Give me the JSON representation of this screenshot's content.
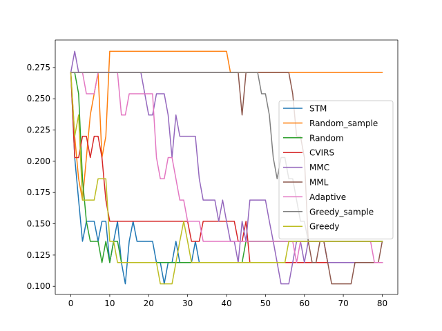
{
  "chart_data": {
    "type": "line",
    "title": "",
    "xlabel": "",
    "ylabel": "",
    "xlim": [
      -4,
      84
    ],
    "ylim": [
      0.0935,
      0.297
    ],
    "xticks": [
      0,
      10,
      20,
      30,
      40,
      50,
      60,
      70,
      80
    ],
    "xtick_labels": [
      "0",
      "10",
      "20",
      "30",
      "40",
      "50",
      "60",
      "70",
      "80"
    ],
    "yticks": [
      0.1,
      0.125,
      0.15,
      0.175,
      0.2,
      0.225,
      0.25,
      0.275
    ],
    "ytick_labels": [
      "0.100",
      "0.125",
      "0.150",
      "0.175",
      "0.200",
      "0.225",
      "0.250",
      "0.275"
    ],
    "grid": false,
    "legend_position": "center-right",
    "x": [
      0,
      1,
      2,
      3,
      4,
      5,
      6,
      7,
      8,
      9,
      10,
      11,
      12,
      13,
      14,
      15,
      16,
      17,
      18,
      19,
      20,
      21,
      22,
      23,
      24,
      25,
      26,
      27,
      28,
      29,
      30,
      31,
      32,
      33,
      34,
      35,
      36,
      37,
      38,
      39,
      40,
      41,
      42,
      43,
      44,
      45,
      46,
      47,
      48,
      49,
      50,
      51,
      52,
      53,
      54,
      55,
      56,
      57,
      58,
      59,
      60,
      61,
      62,
      63,
      64,
      65,
      66,
      67,
      68,
      69,
      70,
      71,
      72,
      73,
      74,
      75,
      76,
      77,
      78,
      79,
      80
    ],
    "series": [
      {
        "name": "STM",
        "color": "#1f77b4",
        "values": [
          0.271,
          0.203,
          0.169,
          0.136,
          0.152,
          0.152,
          0.152,
          0.136,
          0.152,
          0.152,
          0.119,
          0.136,
          0.152,
          0.119,
          0.102,
          0.136,
          0.152,
          0.136,
          0.136,
          0.136,
          0.136,
          0.136,
          0.119,
          0.119,
          0.102,
          0.119,
          0.119,
          0.136,
          0.119,
          0.119,
          0.119,
          0.119,
          0.136,
          0.119,
          0.119,
          0.119,
          0.119,
          0.119,
          0.119,
          0.119,
          0.119,
          0.119,
          0.119,
          0.119,
          0.119,
          0.119,
          0.119,
          0.119,
          0.119,
          0.119,
          0.119,
          0.119,
          0.119,
          0.119,
          0.119,
          0.119,
          0.119,
          0.119,
          0.119,
          0.119,
          0.119,
          0.119,
          0.119,
          0.119,
          0.119,
          0.119,
          0.119,
          0.119,
          0.119,
          0.119,
          0.119,
          0.119,
          0.119,
          0.119,
          0.119,
          0.119,
          0.119,
          0.119,
          0.119,
          0.119,
          0.119
        ]
      },
      {
        "name": "Random_sample",
        "color": "#ff7f0e",
        "values": [
          0.271,
          0.22,
          0.186,
          0.169,
          0.203,
          0.237,
          0.254,
          0.271,
          0.203,
          0.22,
          0.288,
          0.288,
          0.288,
          0.288,
          0.288,
          0.288,
          0.288,
          0.288,
          0.288,
          0.288,
          0.288,
          0.288,
          0.288,
          0.288,
          0.288,
          0.288,
          0.288,
          0.288,
          0.288,
          0.288,
          0.288,
          0.288,
          0.288,
          0.288,
          0.288,
          0.288,
          0.288,
          0.288,
          0.288,
          0.288,
          0.288,
          0.271,
          0.271,
          0.271,
          0.271,
          0.271,
          0.271,
          0.271,
          0.271,
          0.271,
          0.271,
          0.271,
          0.271,
          0.271,
          0.271,
          0.271,
          0.271,
          0.271,
          0.271,
          0.271,
          0.271,
          0.271,
          0.271,
          0.271,
          0.271,
          0.271,
          0.271,
          0.271,
          0.271,
          0.271,
          0.271,
          0.271,
          0.271,
          0.271,
          0.271,
          0.271,
          0.271,
          0.271,
          0.271,
          0.271,
          0.271
        ]
      },
      {
        "name": "Random",
        "color": "#2ca02c",
        "values": [
          0.271,
          0.271,
          0.254,
          0.186,
          0.152,
          0.136,
          0.136,
          0.136,
          0.119,
          0.136,
          0.119,
          0.136,
          0.136,
          0.119,
          0.119,
          0.119,
          0.119,
          0.119,
          0.119,
          0.119,
          0.119,
          0.119,
          0.119,
          0.119,
          0.119,
          0.119,
          0.119,
          0.119,
          0.119,
          0.119,
          0.119,
          0.119,
          0.119,
          0.119,
          0.119,
          0.119,
          0.119,
          0.119,
          0.119,
          0.119,
          0.119,
          0.119,
          0.119,
          0.119,
          0.119,
          0.136,
          0.136,
          0.136,
          0.136,
          0.136,
          0.136,
          0.136,
          0.136,
          0.136,
          0.136,
          0.136,
          0.136,
          0.136,
          0.136,
          0.136,
          0.136,
          0.136,
          0.136,
          0.136,
          0.136,
          0.136,
          0.136,
          0.136,
          0.136,
          0.136,
          0.136,
          0.136,
          0.136,
          0.136,
          0.136,
          0.136,
          0.136,
          0.136,
          0.136,
          0.136,
          0.136
        ]
      },
      {
        "name": "CVIRS",
        "color": "#d62728",
        "values": [
          0.271,
          0.203,
          0.203,
          0.22,
          0.22,
          0.203,
          0.22,
          0.22,
          0.203,
          0.169,
          0.152,
          0.152,
          0.152,
          0.152,
          0.152,
          0.152,
          0.152,
          0.152,
          0.152,
          0.152,
          0.152,
          0.152,
          0.152,
          0.152,
          0.152,
          0.152,
          0.152,
          0.152,
          0.152,
          0.152,
          0.152,
          0.136,
          0.136,
          0.136,
          0.152,
          0.152,
          0.152,
          0.152,
          0.152,
          0.152,
          0.152,
          0.152,
          0.152,
          0.136,
          0.136,
          0.152,
          0.119,
          0.119,
          0.119,
          0.119,
          0.119,
          0.119,
          0.119,
          0.119,
          0.119,
          0.119,
          0.119,
          0.119,
          0.119,
          0.119,
          0.119,
          0.119,
          0.119,
          0.119,
          0.119,
          0.119,
          0.119,
          0.119,
          0.119,
          0.119,
          0.119,
          0.119,
          0.119,
          0.119,
          0.119,
          0.119,
          0.119,
          0.119,
          0.119,
          0.119,
          0.119
        ]
      },
      {
        "name": "MMC",
        "color": "#9467bd",
        "values": [
          0.271,
          0.288,
          0.271,
          0.271,
          0.271,
          0.271,
          0.271,
          0.271,
          0.271,
          0.271,
          0.271,
          0.271,
          0.271,
          0.271,
          0.271,
          0.271,
          0.271,
          0.271,
          0.271,
          0.254,
          0.237,
          0.237,
          0.254,
          0.254,
          0.254,
          0.237,
          0.203,
          0.237,
          0.22,
          0.22,
          0.22,
          0.22,
          0.22,
          0.186,
          0.169,
          0.169,
          0.169,
          0.169,
          0.152,
          0.169,
          0.152,
          0.136,
          0.136,
          0.119,
          0.152,
          0.136,
          0.169,
          0.169,
          0.169,
          0.169,
          0.169,
          0.152,
          0.136,
          0.119,
          0.102,
          0.102,
          0.102,
          0.119,
          0.136,
          0.136,
          0.119,
          0.136,
          0.136,
          0.136,
          0.136,
          0.136,
          0.119,
          0.119,
          0.119,
          0.119,
          0.119,
          0.119,
          0.119,
          0.119,
          0.119,
          0.119,
          0.119,
          0.119,
          0.119,
          0.119,
          0.119
        ]
      },
      {
        "name": "MML",
        "color": "#8c564b",
        "values": [
          0.271,
          0.271,
          0.271,
          0.271,
          0.271,
          0.271,
          0.271,
          0.271,
          0.271,
          0.271,
          0.271,
          0.271,
          0.271,
          0.271,
          0.271,
          0.271,
          0.271,
          0.271,
          0.271,
          0.271,
          0.271,
          0.271,
          0.271,
          0.271,
          0.271,
          0.271,
          0.271,
          0.271,
          0.271,
          0.271,
          0.271,
          0.271,
          0.271,
          0.271,
          0.271,
          0.271,
          0.271,
          0.271,
          0.271,
          0.271,
          0.271,
          0.271,
          0.271,
          0.271,
          0.237,
          0.271,
          0.271,
          0.271,
          0.271,
          0.271,
          0.271,
          0.271,
          0.271,
          0.271,
          0.271,
          0.271,
          0.271,
          0.254,
          0.22,
          0.22,
          0.203,
          0.136,
          0.119,
          0.119,
          0.136,
          0.136,
          0.119,
          0.102,
          0.102,
          0.102,
          0.102,
          0.102,
          0.102,
          0.119,
          0.119,
          0.119,
          0.119,
          0.119,
          0.119,
          0.119,
          0.136
        ]
      },
      {
        "name": "Adaptive",
        "color": "#e377c2",
        "values": [
          0.271,
          0.271,
          0.271,
          0.271,
          0.254,
          0.254,
          0.254,
          0.271,
          0.271,
          0.271,
          0.271,
          0.271,
          0.271,
          0.237,
          0.237,
          0.254,
          0.254,
          0.254,
          0.254,
          0.254,
          0.254,
          0.254,
          0.203,
          0.186,
          0.186,
          0.203,
          0.203,
          0.186,
          0.169,
          0.169,
          0.152,
          0.152,
          0.152,
          0.152,
          0.136,
          0.136,
          0.136,
          0.136,
          0.136,
          0.136,
          0.136,
          0.136,
          0.136,
          0.136,
          0.136,
          0.136,
          0.136,
          0.136,
          0.136,
          0.136,
          0.136,
          0.136,
          0.136,
          0.136,
          0.136,
          0.136,
          0.136,
          0.136,
          0.119,
          0.136,
          0.136,
          0.136,
          0.136,
          0.136,
          0.136,
          0.136,
          0.136,
          0.136,
          0.136,
          0.136,
          0.136,
          0.136,
          0.136,
          0.136,
          0.136,
          0.136,
          0.136,
          0.136,
          0.119,
          0.119,
          0.119
        ]
      },
      {
        "name": "Greedy_sample",
        "color": "#7f7f7f",
        "values": [
          0.271,
          0.271,
          0.271,
          0.271,
          0.271,
          0.271,
          0.271,
          0.271,
          0.271,
          0.271,
          0.271,
          0.271,
          0.271,
          0.271,
          0.271,
          0.271,
          0.271,
          0.271,
          0.271,
          0.271,
          0.271,
          0.271,
          0.271,
          0.271,
          0.271,
          0.271,
          0.271,
          0.271,
          0.271,
          0.271,
          0.271,
          0.271,
          0.271,
          0.271,
          0.271,
          0.271,
          0.271,
          0.271,
          0.271,
          0.271,
          0.271,
          0.271,
          0.271,
          0.271,
          0.271,
          0.271,
          0.271,
          0.271,
          0.271,
          0.254,
          0.254,
          0.237,
          0.203,
          0.186,
          0.203,
          0.203,
          0.186,
          0.186,
          0.169,
          0.152,
          0.152,
          0.136,
          0.136,
          0.136,
          0.136,
          0.136,
          0.136,
          0.136,
          0.136,
          0.136,
          0.136,
          0.136,
          0.136,
          0.136,
          0.136,
          0.136,
          0.136,
          0.136,
          0.136,
          0.136,
          0.136
        ]
      },
      {
        "name": "Greedy",
        "color": "#bcbd22",
        "values": [
          0.271,
          0.22,
          0.237,
          0.169,
          0.169,
          0.169,
          0.169,
          0.186,
          0.186,
          0.186,
          0.136,
          0.136,
          0.119,
          0.119,
          0.119,
          0.119,
          0.119,
          0.119,
          0.119,
          0.119,
          0.119,
          0.119,
          0.119,
          0.102,
          0.102,
          0.102,
          0.102,
          0.119,
          0.136,
          0.152,
          0.136,
          0.119,
          0.119,
          0.119,
          0.119,
          0.119,
          0.119,
          0.119,
          0.119,
          0.119,
          0.119,
          0.119,
          0.119,
          0.119,
          0.119,
          0.119,
          0.119,
          0.119,
          0.119,
          0.119,
          0.119,
          0.119,
          0.119,
          0.119,
          0.119,
          0.119,
          0.136,
          0.136,
          0.136,
          0.136,
          0.136,
          0.136,
          0.136,
          0.136,
          0.136,
          0.136,
          0.136,
          0.136,
          0.136,
          0.136,
          0.136,
          0.136,
          0.136,
          0.136,
          0.136,
          0.136,
          0.136,
          0.136,
          0.136,
          0.136,
          0.136
        ]
      }
    ]
  }
}
